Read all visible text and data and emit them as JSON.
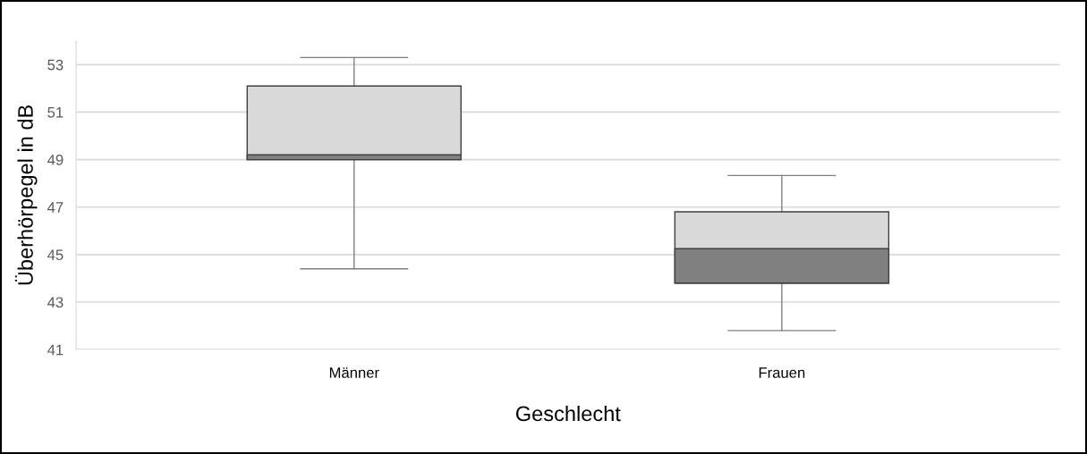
{
  "chart_data": {
    "type": "box",
    "xlabel": "Geschlecht",
    "ylabel": "Überhörpegel in dB",
    "categories": [
      "Männer",
      "Frauen"
    ],
    "boxes": [
      {
        "low": 44.4,
        "q1": 49.0,
        "median": 49.2,
        "q3": 52.1,
        "high": 53.3
      },
      {
        "low": 41.8,
        "q1": 43.8,
        "median": 45.25,
        "q3": 46.8,
        "high": 48.33
      }
    ],
    "colors": [
      "#d9d9d9",
      "#808080"
    ],
    "ylim": [
      41,
      54
    ],
    "yticks": [
      41,
      43,
      45,
      47,
      49,
      51,
      53
    ],
    "grid": "y",
    "legend": false
  }
}
